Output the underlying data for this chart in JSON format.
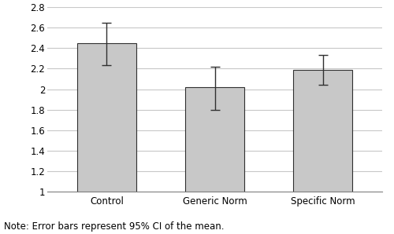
{
  "categories": [
    "Control",
    "Generic Norm",
    "Specific Norm"
  ],
  "values": [
    2.45,
    2.02,
    2.19
  ],
  "errors_upper": [
    0.2,
    0.2,
    0.14
  ],
  "errors_lower": [
    0.22,
    0.22,
    0.15
  ],
  "bar_color": "#c8c8c8",
  "bar_edge_color": "#303030",
  "ylim": [
    1.0,
    2.8
  ],
  "yticks": [
    1.0,
    1.2,
    1.4,
    1.6,
    1.8,
    2.0,
    2.2,
    2.4,
    2.6,
    2.8
  ],
  "ytick_labels": [
    "1",
    "1.2",
    "1.4",
    "1.6",
    "1.8",
    "2",
    "2.2",
    "2.4",
    "2.6",
    "2.8"
  ],
  "note": "Note: Error bars represent 95% CI of the mean.",
  "bar_width": 0.55,
  "grid_color": "#c8c8c8",
  "background_color": "#ffffff",
  "tick_fontsize": 8.5,
  "note_fontsize": 8.5,
  "xlim": [
    -0.55,
    2.55
  ]
}
